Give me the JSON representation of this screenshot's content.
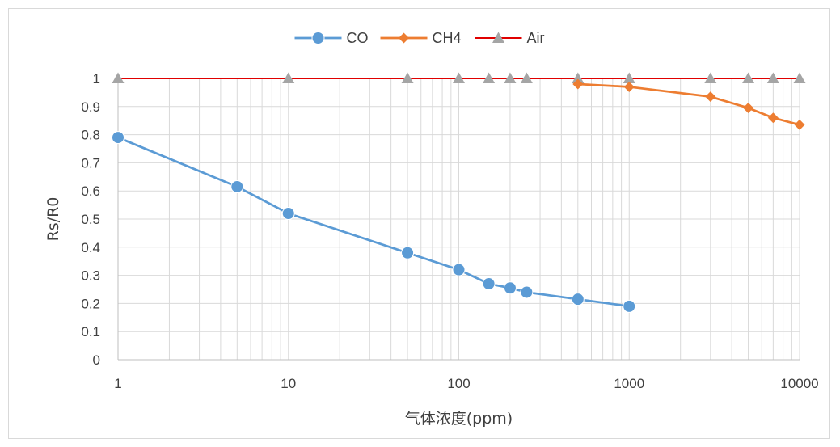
{
  "chart_data": {
    "type": "line",
    "title": "",
    "xlabel": "气体浓度(ppm)",
    "ylabel": "Rs/R0",
    "xscale": "log",
    "xlim": [
      1,
      10000
    ],
    "ylim": [
      0,
      1
    ],
    "xticks": [
      1,
      10,
      100,
      1000,
      10000
    ],
    "xtick_labels": [
      "1",
      "10",
      "100",
      "1000",
      "10000"
    ],
    "yticks": [
      0,
      0.1,
      0.2,
      0.3,
      0.4,
      0.5,
      0.6,
      0.7,
      0.8,
      0.9,
      1
    ],
    "ytick_labels": [
      "0",
      "0.1",
      "0.2",
      "0.3",
      "0.4",
      "0.5",
      "0.6",
      "0.7",
      "0.8",
      "0.9",
      "1"
    ],
    "grid": true,
    "legend_position": "top",
    "series": [
      {
        "name": "CO",
        "color": "#5b9bd5",
        "marker": "circle",
        "points": [
          {
            "x": 1,
            "y": 0.79
          },
          {
            "x": 5,
            "y": 0.615
          },
          {
            "x": 10,
            "y": 0.52
          },
          {
            "x": 50,
            "y": 0.38
          },
          {
            "x": 100,
            "y": 0.32
          },
          {
            "x": 150,
            "y": 0.27
          },
          {
            "x": 200,
            "y": 0.255
          },
          {
            "x": 250,
            "y": 0.24
          },
          {
            "x": 500,
            "y": 0.215
          },
          {
            "x": 1000,
            "y": 0.19
          }
        ]
      },
      {
        "name": "CH4",
        "color": "#ed7d31",
        "marker": "diamond",
        "points": [
          {
            "x": 500,
            "y": 0.98
          },
          {
            "x": 1000,
            "y": 0.97
          },
          {
            "x": 3000,
            "y": 0.935
          },
          {
            "x": 5000,
            "y": 0.895
          },
          {
            "x": 7000,
            "y": 0.86
          },
          {
            "x": 10000,
            "y": 0.835
          }
        ]
      },
      {
        "name": "Air",
        "color": "#e00000",
        "marker": "triangle",
        "marker_color": "#a5a5a5",
        "points": [
          {
            "x": 1,
            "y": 1
          },
          {
            "x": 10,
            "y": 1
          },
          {
            "x": 50,
            "y": 1
          },
          {
            "x": 100,
            "y": 1
          },
          {
            "x": 150,
            "y": 1
          },
          {
            "x": 200,
            "y": 1
          },
          {
            "x": 250,
            "y": 1
          },
          {
            "x": 500,
            "y": 1
          },
          {
            "x": 1000,
            "y": 1
          },
          {
            "x": 3000,
            "y": 1
          },
          {
            "x": 5000,
            "y": 1
          },
          {
            "x": 7000,
            "y": 1
          },
          {
            "x": 10000,
            "y": 1
          }
        ]
      }
    ]
  }
}
